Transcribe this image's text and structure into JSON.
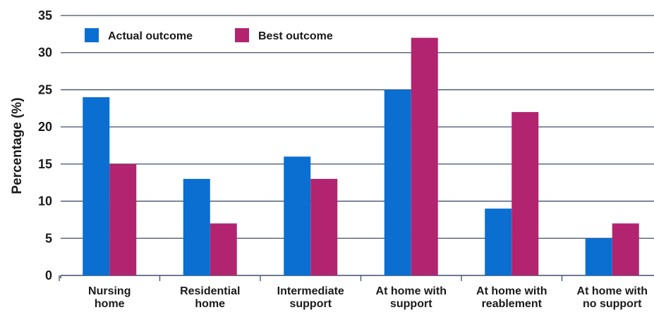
{
  "chart_data": {
    "type": "bar",
    "title": "",
    "xlabel": "",
    "ylabel": "Percentage (%)",
    "ylim": [
      0,
      35
    ],
    "yticks": [
      0,
      5,
      10,
      15,
      20,
      25,
      30,
      35
    ],
    "grid": true,
    "legend": "top-left",
    "categories": [
      [
        "Nursing",
        "home"
      ],
      [
        "Residential",
        "home"
      ],
      [
        "Intermediate",
        "support"
      ],
      [
        "At home with",
        "support"
      ],
      [
        "At home with",
        "reablement"
      ],
      [
        "At home with",
        "no support"
      ]
    ],
    "series": [
      {
        "name": "Actual outcome",
        "color": "#0a6fd1",
        "values": [
          24,
          13,
          16,
          25,
          9,
          5
        ]
      },
      {
        "name": "Best outcome",
        "color": "#b2246f",
        "values": [
          15,
          7,
          13,
          32,
          22,
          7
        ]
      }
    ]
  }
}
